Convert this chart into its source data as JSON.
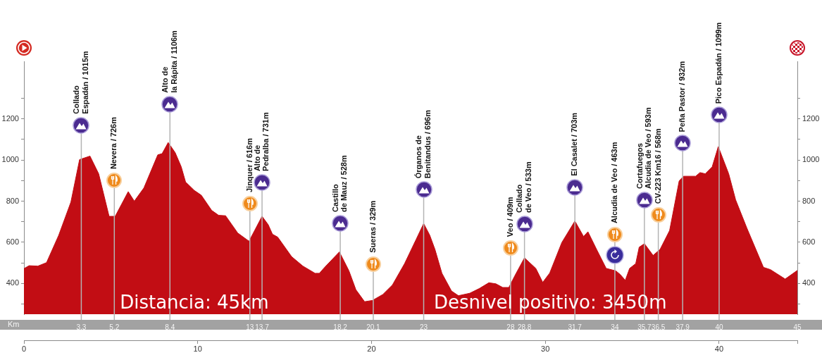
{
  "chart_data": {
    "type": "area",
    "color": "#c20d14",
    "x": [
      0,
      0.3,
      0.8,
      1.3,
      2.0,
      2.7,
      3.2,
      3.8,
      4.3,
      4.9,
      5.25,
      6.0,
      6.35,
      6.9,
      7.7,
      7.95,
      8.3,
      8.7,
      9.05,
      9.3,
      9.8,
      10.2,
      10.8,
      11.2,
      11.6,
      12.3,
      12.95,
      13.7,
      14.05,
      14.3,
      14.6,
      15.4,
      16.05,
      16.75,
      17.0,
      17.3,
      18.15,
      18.7,
      19.1,
      19.6,
      20.05,
      20.65,
      21.2,
      21.9,
      22.55,
      23.0,
      23.35,
      23.65,
      24.05,
      24.6,
      25.0,
      25.65,
      26.2,
      26.75,
      27.15,
      27.55,
      27.9,
      28.25,
      28.8,
      29.45,
      29.85,
      30.25,
      30.95,
      31.7,
      32.2,
      32.45,
      32.95,
      33.5,
      34.05,
      34.3,
      34.6,
      34.85,
      35.2,
      35.4,
      35.7,
      36.2,
      36.6,
      37.15,
      37.7,
      37.95,
      38.65,
      38.9,
      39.2,
      39.6,
      39.95,
      40.55,
      40.95,
      41.6,
      42.55,
      42.95,
      43.8,
      44.5
    ],
    "values": [
      472,
      486,
      484,
      501,
      634,
      795,
      1002,
      1019,
      933,
      726,
      726,
      846,
      800,
      864,
      1025,
      1031,
      1085,
      1036,
      967,
      893,
      852,
      829,
      755,
      731,
      729,
      645,
      605,
      726,
      686,
      639,
      625,
      530,
      484,
      449,
      449,
      478,
      553,
      461,
      369,
      311,
      317,
      346,
      392,
      496,
      611,
      691,
      634,
      565,
      449,
      363,
      340,
      352,
      375,
      403,
      398,
      380,
      380,
      438,
      524,
      473,
      405,
      450,
      599,
      703,
      628,
      651,
      565,
      473,
      461,
      444,
      415,
      473,
      496,
      576,
      593,
      536,
      565,
      657,
      898,
      921,
      921,
      939,
      933,
      967,
      1065,
      933,
      806,
      668,
      478,
      467,
      421,
      463
    ],
    "xlim": [
      0,
      44.5
    ],
    "xticks": [
      0,
      10,
      20,
      30,
      40,
      {
        "value": 44.5,
        "label": null
      }
    ],
    "x2lim": [
      0,
      44.5
    ],
    "x2label": "Km",
    "x2ticks": [
      3.3,
      5.2,
      8.4,
      13,
      13.7,
      18.2,
      20.1,
      23,
      28,
      28.8,
      31.7,
      34,
      35.7,
      36.5,
      37.9,
      40,
      {
        "value": 44.5,
        "label": "45"
      }
    ],
    "ylim": [
      250,
      1480
    ],
    "yticks": [
      {
        "value": 300,
        "label": null
      },
      400,
      {
        "value": 500,
        "label": null
      },
      600,
      {
        "value": 700,
        "label": null
      },
      800,
      {
        "value": 900,
        "label": null
      },
      1000,
      {
        "value": 1100,
        "label": null
      },
      1200,
      {
        "value": 1300,
        "label": null
      }
    ],
    "y2lim": [
      250,
      1480
    ],
    "y2ticks": [
      {
        "value": 300,
        "label": null
      },
      400,
      {
        "value": 500,
        "label": null
      },
      600,
      {
        "value": 700,
        "label": null
      },
      800,
      {
        "value": 900,
        "label": null
      },
      1000,
      {
        "value": 1100,
        "label": null
      },
      1200,
      {
        "value": 1300,
        "label": null
      }
    ],
    "ref_lines": [
      {
        "axis": "x",
        "value": 3.3,
        "label": "Collado\nEspadán / 1015m"
      },
      {
        "axis": "x",
        "value": 5.2,
        "label": "Nevera / 726m"
      },
      {
        "axis": "x",
        "value": 8.4,
        "label": "Alto de\nla Rápita / 1106m"
      },
      {
        "axis": "x",
        "value": 13,
        "label": "Jinquer / 616m"
      },
      {
        "axis": "x",
        "value": 13.7,
        "label": "Alto de\nPedralba / 731m"
      },
      {
        "axis": "x",
        "value": 18.2,
        "label": "Castillo\nde Mauz / 528m"
      },
      {
        "axis": "x",
        "value": 20.1,
        "label": "Sueras / 329m"
      },
      {
        "axis": "x",
        "value": 23,
        "label": "Órganos de\nBenitandus / 696m"
      },
      {
        "axis": "x",
        "value": 28,
        "label": "Veo / 409m"
      },
      {
        "axis": "x",
        "value": 28.8,
        "label": "Collado\nde Veo / 533m"
      },
      {
        "axis": "x",
        "value": 31.7,
        "label": "El Casalet / 703m"
      },
      {
        "axis": "x",
        "value": 34,
        "label": "Alcudia de Veo / 463m"
      },
      {
        "axis": "x",
        "value": 35.7,
        "label": "Cortafuegos\nAlcudia de Veo / 593m"
      },
      {
        "axis": "x",
        "value": 36.5,
        "label": "CV-223 Km16 / 568m"
      },
      {
        "axis": "x",
        "value": 37.9,
        "label": "Peña Pastor / 932m"
      },
      {
        "axis": "x",
        "value": 40,
        "label": "Pico Espadán / 1099m"
      }
    ],
    "annotations": [
      "Distancia: 45km",
      "Desnivel positivo: 3450m"
    ]
  }
}
